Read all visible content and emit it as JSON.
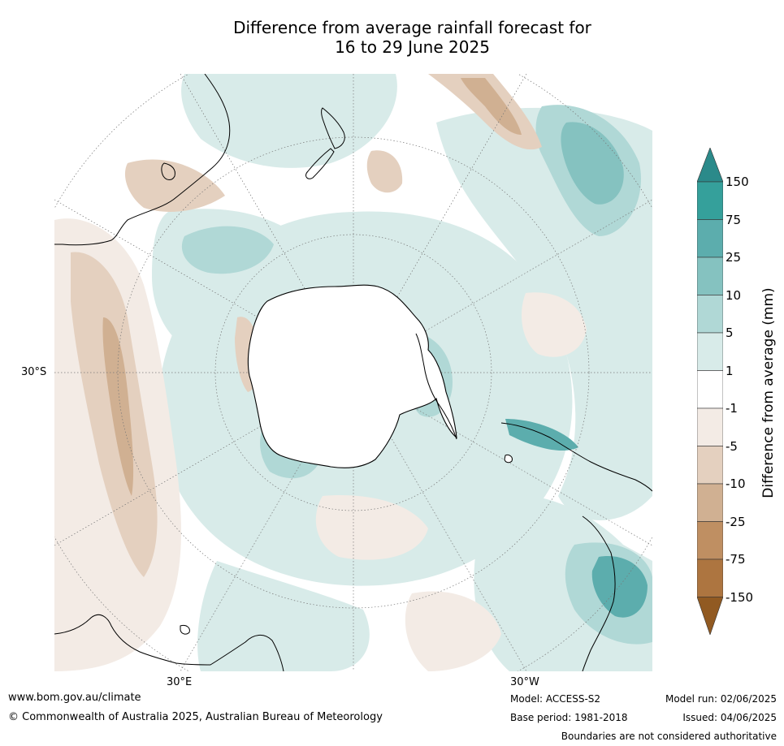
{
  "title_line1": "Difference from average rainfall forecast for",
  "title_line2": "16 to 29 June 2025",
  "map": {
    "projection": "south-polar-stereographic",
    "lat_label": "30°S",
    "lon_label_left": "30°E",
    "lon_label_right": "30°W",
    "ocean_color": "#ffffff",
    "coast_color": "#000000"
  },
  "colorbar": {
    "label": "Difference from average (mm)",
    "ticks": [
      "150",
      "75",
      "25",
      "10",
      "5",
      "1",
      "-1",
      "-5",
      "-10",
      "-25",
      "-75",
      "-150"
    ],
    "colors": [
      "#2b8a8a",
      "#35a09b",
      "#5cadad",
      "#85c2c0",
      "#b0d8d6",
      "#d8ebe9",
      "#ffffff",
      "#f3ebe5",
      "#e4d0bf",
      "#d0b092",
      "#bf8f62",
      "#ad7540",
      "#915a22"
    ]
  },
  "footer": {
    "website": "www.bom.gov.au/climate",
    "copyright": "© Commonwealth of Australia 2025, Australian Bureau of Meteorology",
    "model": "Model: ACCESS-S2",
    "base_period": "Base period: 1981-2018",
    "model_run": "Model run: 02/06/2025",
    "issued": "Issued: 04/06/2025",
    "disclaimer": "Boundaries are not considered authoritative"
  }
}
